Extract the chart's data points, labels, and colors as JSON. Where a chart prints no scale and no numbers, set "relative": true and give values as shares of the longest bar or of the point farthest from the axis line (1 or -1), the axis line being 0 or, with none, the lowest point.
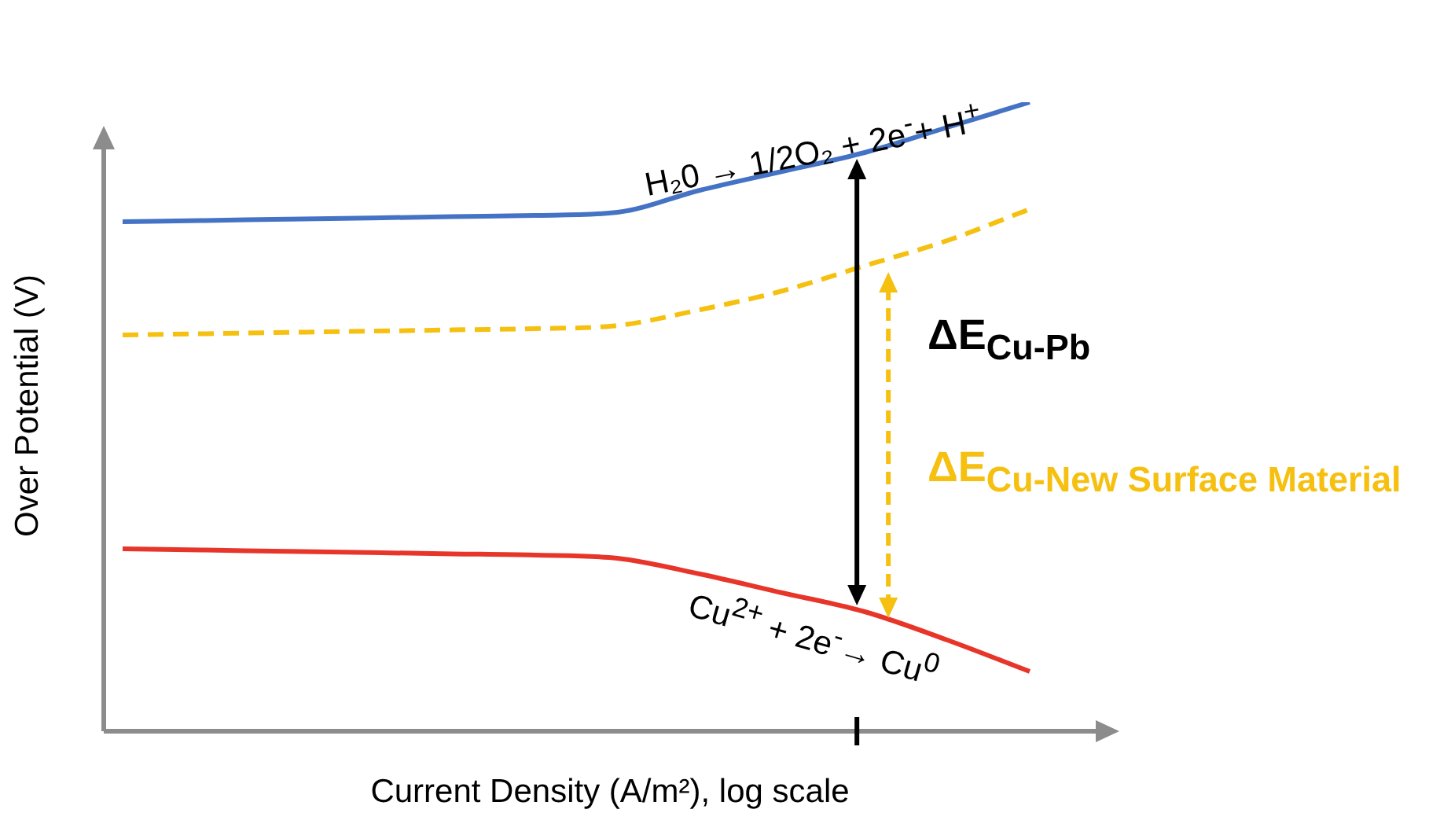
{
  "chart_data": {
    "type": "line",
    "relative": true,
    "xlabel": "Current Density (A/m²), log scale",
    "ylabel": "Over Potential (V)",
    "categories": [
      null,
      null,
      null,
      null,
      null,
      null,
      null,
      null,
      null,
      null,
      null,
      null
    ],
    "series": [
      {
        "color": "#4472c4",
        "line_style": "solid",
        "values": [
          0.81,
          0.812,
          0.814,
          0.816,
          0.818,
          0.82,
          0.825,
          0.86,
          0.89,
          0.92,
          0.96,
          1.0
        ]
      },
      {
        "color": "#f5c010",
        "line_style": "dashed",
        "values": [
          0.63,
          0.632,
          0.634,
          0.636,
          0.638,
          0.64,
          0.645,
          0.67,
          0.7,
          0.74,
          0.78,
          0.83
        ]
      },
      {
        "color": "#e8352a",
        "line_style": "solid",
        "values": [
          0.29,
          0.288,
          0.286,
          0.284,
          0.282,
          0.28,
          0.275,
          0.25,
          0.22,
          0.19,
          0.145,
          0.095
        ]
      }
    ],
    "annotations": [
      "H₂0 → 1/2O₂ + 2e$^{-}$+ H$^{+}$",
      "Cu$^{2+}$ + 2e$^{-}$→ Cu$^{0}$",
      "ΔE$_{Cu-Pb}$",
      "ΔE$_{Cu-New Surface Material}$"
    ],
    "legend": false,
    "marker": "none"
  }
}
